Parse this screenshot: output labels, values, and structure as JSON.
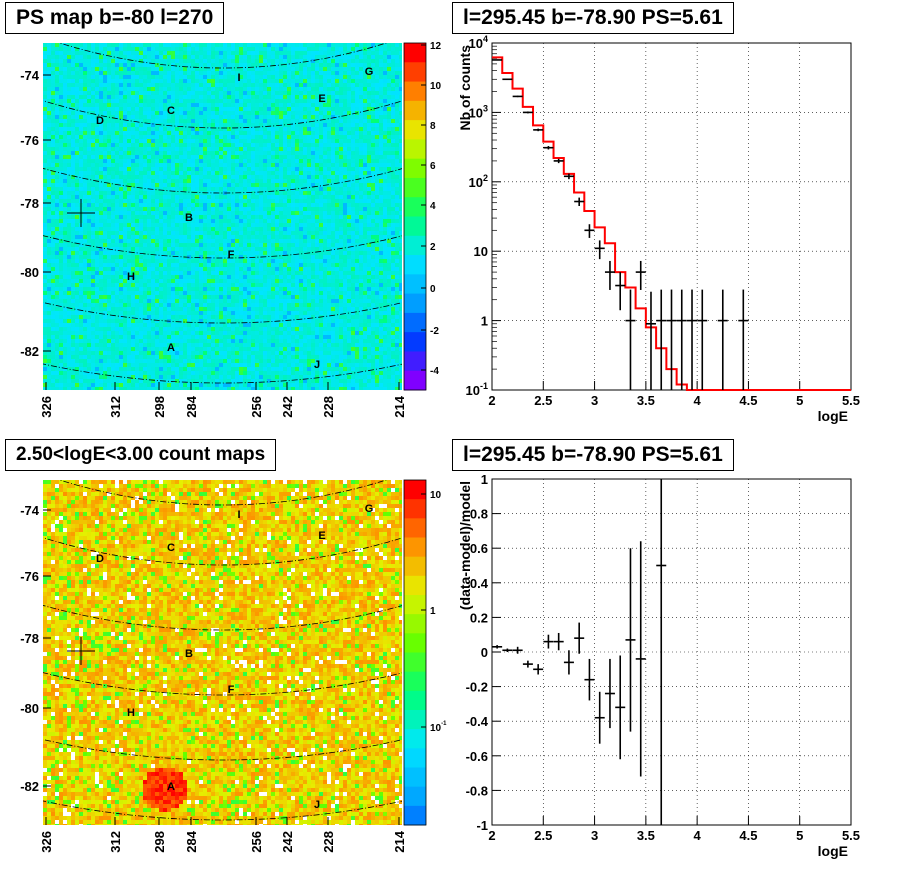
{
  "panels": {
    "ps_map": {
      "title": "PS map b=-80 l=270"
    },
    "spectrum": {
      "title": "l=295.45 b=-78.90 PS=5.61"
    },
    "count_map": {
      "title": "2.50<logE<3.00 count maps"
    },
    "residual": {
      "title": "l=295.45 b=-78.90 PS=5.61"
    }
  },
  "colors": {
    "map_background_top": "#00e5ff",
    "map_background_bottom": "#f2e33a",
    "model_line": "#ff0000",
    "data_marks": "#000000"
  },
  "chart_data": [
    {
      "type": "heatmap",
      "name": "ps_map",
      "yticks": [
        "-74",
        "-76",
        "-78",
        "-80",
        "-82"
      ],
      "xticks": [
        "326",
        "312",
        "298",
        "284",
        "256",
        "242",
        "228",
        "214"
      ],
      "colorbar_ticks": [
        "12",
        "10",
        "8",
        "6",
        "4",
        "2",
        "0",
        "-2",
        "-4"
      ],
      "colorbar_range": [
        -5,
        12
      ],
      "region_labels": [
        "I",
        "G",
        "E",
        "C",
        "D",
        "B",
        "F",
        "H",
        "A",
        "J"
      ],
      "marker": {
        "label": "+",
        "b": -78.4,
        "l": 322
      }
    },
    {
      "type": "line",
      "name": "spectrum",
      "xlabel": "logE",
      "ylabel": "Nb of counts",
      "xlim": [
        2,
        5.5
      ],
      "ylim": [
        0.1,
        10000
      ],
      "log_y": true,
      "grid": true,
      "xticks": [
        "2",
        "2.5",
        "3",
        "3.5",
        "4",
        "4.5",
        "5",
        "5.5"
      ],
      "yticks": [
        "10^4",
        "10^3",
        "10^2",
        "10",
        "1",
        "10^-1"
      ],
      "data": {
        "x": [
          2.05,
          2.15,
          2.25,
          2.35,
          2.45,
          2.55,
          2.65,
          2.75,
          2.85,
          2.95,
          3.05,
          3.15,
          3.25,
          3.35,
          3.45,
          3.55,
          3.65,
          3.75,
          3.85,
          3.95,
          4.05,
          4.25,
          4.45
        ],
        "y": [
          5700,
          3000,
          1700,
          1000,
          560,
          310,
          200,
          120,
          52,
          20,
          11,
          5,
          3.2,
          1,
          5,
          0.9,
          1,
          1,
          1,
          1,
          1,
          1,
          1
        ]
      },
      "model": {
        "edges": [
          2.0,
          2.1,
          2.2,
          2.3,
          2.4,
          2.5,
          2.6,
          2.7,
          2.8,
          2.9,
          3.0,
          3.1,
          3.2,
          3.3,
          3.4,
          3.5,
          3.6,
          3.7,
          3.8,
          3.9,
          4.0,
          5.5
        ],
        "values": [
          6200,
          3700,
          2200,
          1200,
          650,
          380,
          220,
          130,
          70,
          38,
          22,
          13,
          5,
          3,
          1.5,
          0.8,
          0.4,
          0.2,
          0.12,
          0.1,
          0.1
        ]
      }
    },
    {
      "type": "heatmap",
      "name": "count_map",
      "yticks": [
        "-74",
        "-76",
        "-78",
        "-80",
        "-82"
      ],
      "xticks": [
        "326",
        "312",
        "298",
        "284",
        "256",
        "242",
        "228",
        "214"
      ],
      "colorbar_ticks": [
        "10",
        "1",
        "10^-1"
      ],
      "colorbar_log": true,
      "region_labels": [
        "I",
        "G",
        "E",
        "C",
        "D",
        "B",
        "F",
        "H",
        "A",
        "J"
      ],
      "marker": {
        "label": "+",
        "b": -78.4,
        "l": 322
      }
    },
    {
      "type": "scatter",
      "name": "residual",
      "xlabel": "logE",
      "ylabel": "(data-model)/model",
      "xlim": [
        2,
        5.5
      ],
      "ylim": [
        -1,
        1
      ],
      "grid": true,
      "xticks": [
        "2",
        "2.5",
        "3",
        "3.5",
        "4",
        "4.5",
        "5",
        "5.5"
      ],
      "yticks": [
        "1",
        "0.8",
        "0.6",
        "0.4",
        "0.2",
        "0",
        "-0.2",
        "-0.4",
        "-0.6",
        "-0.8",
        "-1"
      ],
      "data": {
        "x": [
          2.05,
          2.15,
          2.25,
          2.35,
          2.45,
          2.55,
          2.65,
          2.75,
          2.85,
          2.95,
          3.05,
          3.15,
          3.25,
          3.35,
          3.45,
          3.65
        ],
        "y": [
          0.03,
          0.01,
          0.01,
          -0.07,
          -0.1,
          0.06,
          0.06,
          -0.06,
          0.08,
          -0.16,
          -0.38,
          -0.24,
          -0.32,
          0.07,
          -0.04,
          0.5
        ],
        "err": [
          0.01,
          0.01,
          0.02,
          0.02,
          0.03,
          0.04,
          0.05,
          0.07,
          0.09,
          0.12,
          0.15,
          0.2,
          0.3,
          0.53,
          0.68,
          1.5
        ]
      }
    }
  ]
}
